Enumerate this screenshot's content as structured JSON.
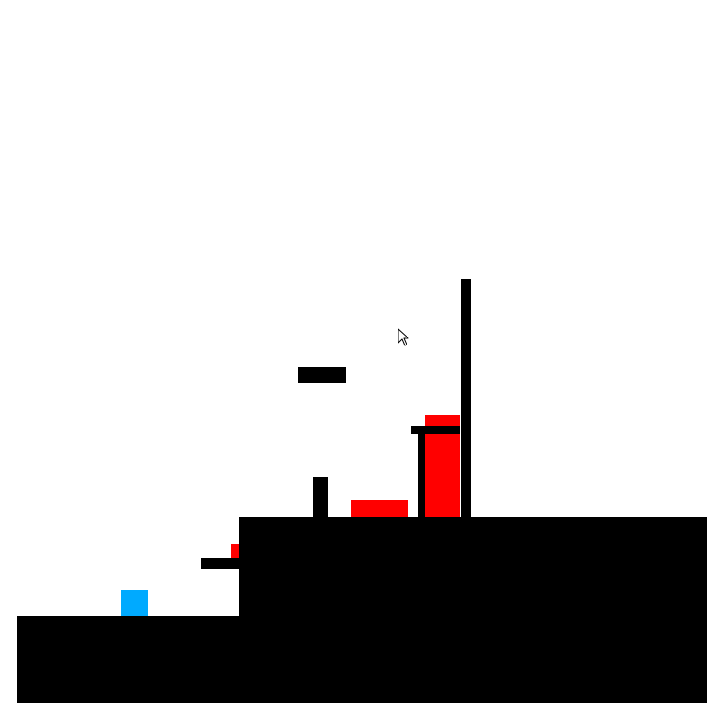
{
  "game": {
    "colors": {
      "background": "#ffffff",
      "terrain": "#000000",
      "hazard": "#ff0000",
      "player": "#00aaff"
    },
    "icons": {
      "cursor": "mouse-pointer-arrow-icon"
    }
  }
}
